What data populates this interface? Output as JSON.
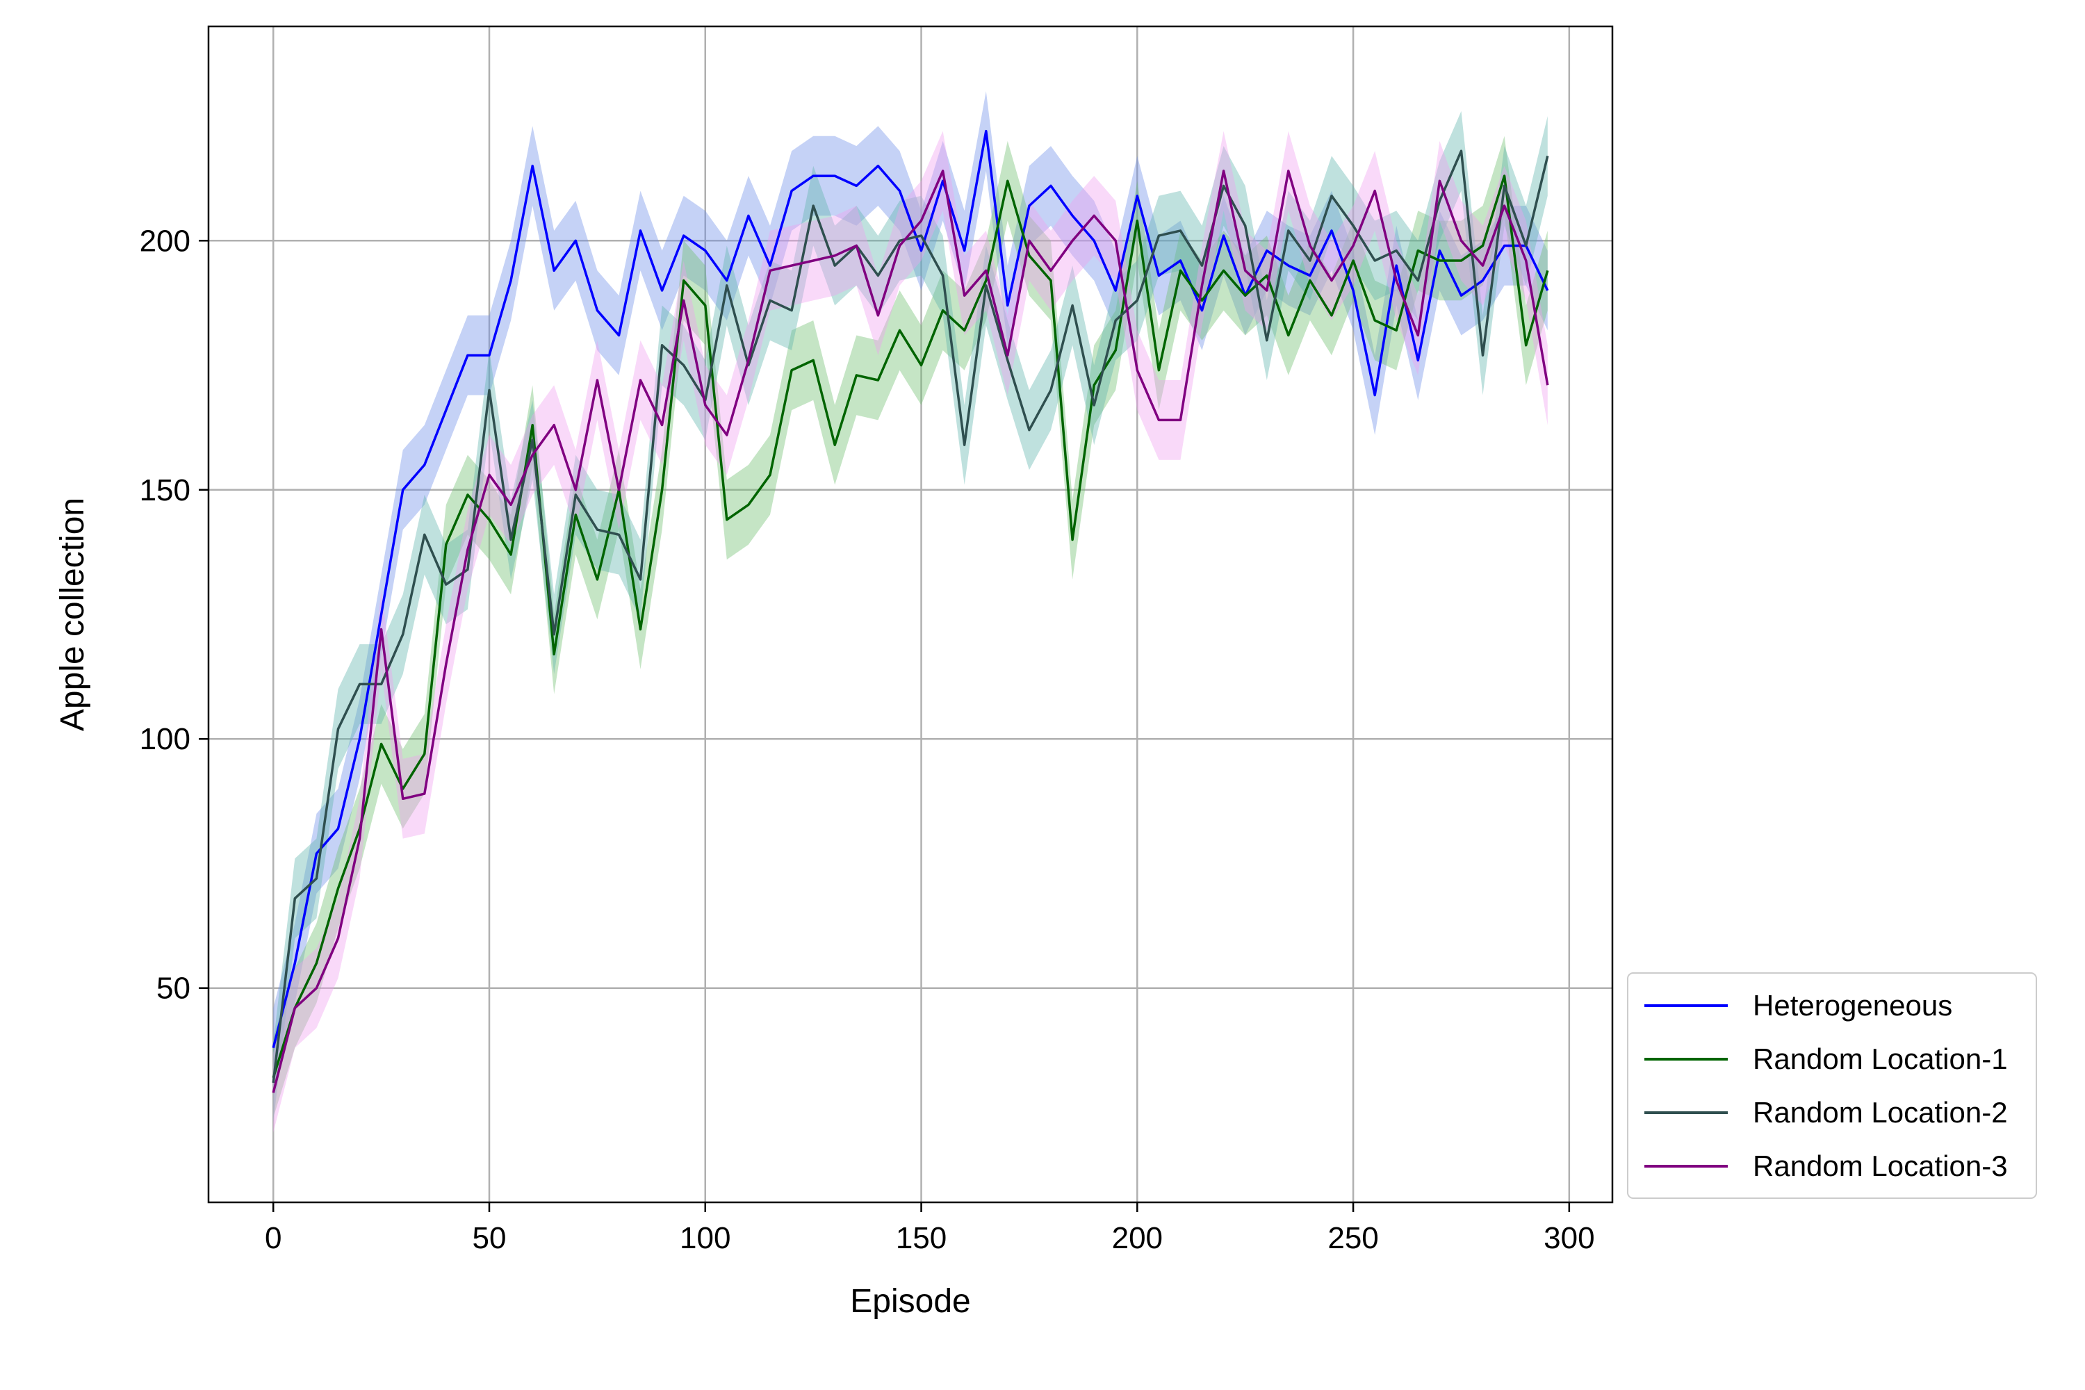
{
  "chart_data": {
    "type": "line",
    "title": "",
    "xlabel": "Episode",
    "ylabel": "Apple collection",
    "xlim": [
      -15,
      310
    ],
    "ylim": [
      7,
      243
    ],
    "xticks": [
      0,
      50,
      100,
      150,
      200,
      250,
      300
    ],
    "yticks": [
      50,
      100,
      150,
      200
    ],
    "grid": true,
    "legend_position": "bottom-right-outside",
    "shaded_band": "mean ± spread (approx. ±8)",
    "x": [
      0,
      5,
      10,
      15,
      20,
      25,
      30,
      35,
      40,
      45,
      50,
      55,
      60,
      65,
      70,
      75,
      80,
      85,
      90,
      95,
      100,
      105,
      110,
      115,
      120,
      125,
      130,
      135,
      140,
      145,
      150,
      155,
      160,
      165,
      170,
      175,
      180,
      185,
      190,
      195,
      200,
      205,
      210,
      215,
      220,
      225,
      230,
      235,
      240,
      245,
      250,
      255,
      260,
      265,
      270,
      275,
      280,
      285,
      290,
      295
    ],
    "series": [
      {
        "name": "Heterogeneous",
        "color": "#0000ff",
        "band_color": "#6f8fe8",
        "values": [
          38,
          55,
          77,
          82,
          100,
          125,
          150,
          155,
          166,
          177,
          177,
          192,
          215,
          194,
          200,
          186,
          181,
          202,
          190,
          201,
          198,
          192,
          205,
          195,
          210,
          213,
          213,
          211,
          215,
          210,
          198,
          212,
          198,
          222,
          187,
          207,
          211,
          205,
          200,
          190,
          209,
          193,
          196,
          186,
          201,
          189,
          198,
          195,
          193,
          202,
          190,
          169,
          195,
          176,
          198,
          189,
          192,
          199,
          199,
          190
        ]
      },
      {
        "name": "Random Location-1",
        "color": "#006400",
        "band_color": "#6fbf6f",
        "values": [
          32,
          46,
          55,
          70,
          82,
          99,
          90,
          97,
          139,
          149,
          144,
          137,
          163,
          117,
          145,
          132,
          150,
          122,
          150,
          192,
          187,
          144,
          147,
          153,
          174,
          176,
          159,
          173,
          172,
          182,
          175,
          186,
          182,
          192,
          212,
          197,
          192,
          140,
          171,
          178,
          204,
          174,
          194,
          188,
          194,
          189,
          193,
          181,
          192,
          185,
          196,
          184,
          182,
          198,
          196,
          196,
          199,
          213,
          179,
          194
        ]
      },
      {
        "name": "Random Location-2",
        "color": "#2f4f4f",
        "band_color": "#5fb5ad",
        "values": [
          31,
          68,
          72,
          102,
          111,
          111,
          121,
          141,
          131,
          134,
          170,
          140,
          160,
          121,
          149,
          142,
          141,
          132,
          179,
          175,
          168,
          191,
          175,
          188,
          186,
          207,
          195,
          199,
          193,
          200,
          201,
          193,
          159,
          191,
          176,
          162,
          170,
          187,
          167,
          184,
          188,
          201,
          202,
          195,
          211,
          203,
          180,
          202,
          196,
          209,
          203,
          196,
          198,
          192,
          208,
          218,
          177,
          211,
          199,
          217
        ]
      },
      {
        "name": "Random Location-3",
        "color": "#800080",
        "band_color": "#f0a0f0",
        "values": [
          29,
          46,
          50,
          60,
          80,
          122,
          88,
          89,
          115,
          138,
          153,
          147,
          157,
          163,
          150,
          172,
          150,
          172,
          163,
          188,
          167,
          161,
          176,
          194,
          195,
          196,
          197,
          199,
          185,
          199,
          204,
          214,
          189,
          194,
          177,
          200,
          194,
          200,
          205,
          200,
          174,
          164,
          164,
          191,
          214,
          194,
          190,
          214,
          199,
          192,
          199,
          210,
          192,
          181,
          212,
          200,
          195,
          207,
          196,
          171
        ]
      }
    ]
  }
}
